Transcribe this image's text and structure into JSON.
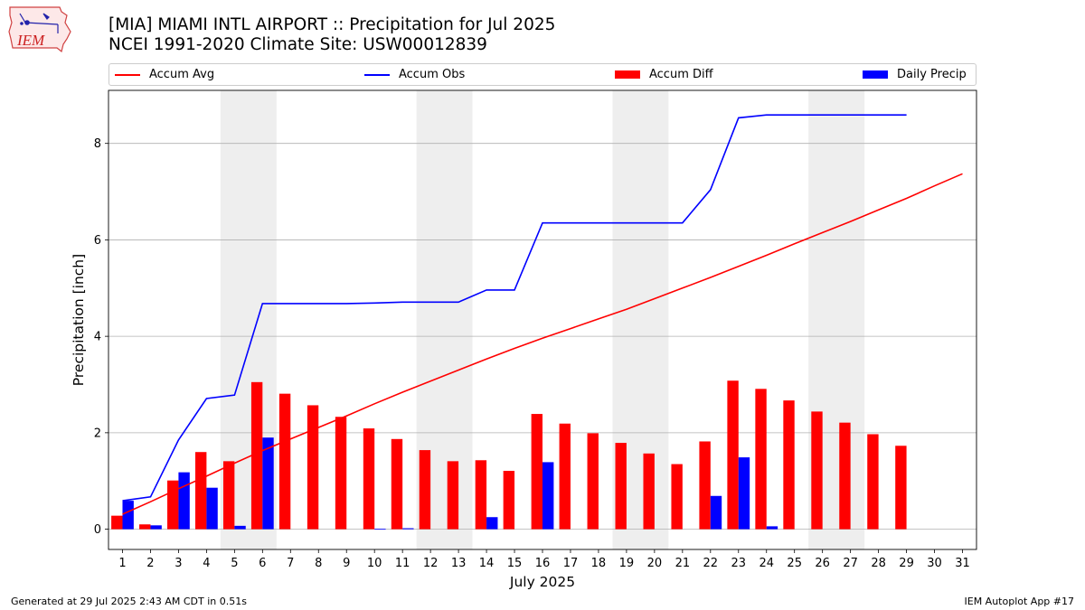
{
  "logo_text": "IEM",
  "footer": {
    "generated": "Generated at 29 Jul 2025 2:43 AM CDT in 0.51s",
    "app": "IEM Autoplot App #17"
  },
  "colors": {
    "avg": "#ff0000",
    "obs": "#0000ff",
    "diff": "#ff0000",
    "daily": "#0000ff",
    "weekend_band": "#eeeeee"
  },
  "chart_data": {
    "type": "bar",
    "title": "[MIA] MIAMI INTL AIRPORT :: Precipitation for Jul 2025",
    "subtitle": "NCEI 1991-2020 Climate Site: USW00012839",
    "xlabel": "July 2025",
    "ylabel": "Precipitation [inch]",
    "xlim": [
      0.5,
      31.5
    ],
    "ylim": [
      -0.42,
      9.1
    ],
    "yticks": [
      0,
      2,
      4,
      6,
      8
    ],
    "grid": "y",
    "legend": "top, spanning width",
    "categories": [
      "1",
      "2",
      "3",
      "4",
      "5",
      "6",
      "7",
      "8",
      "9",
      "10",
      "11",
      "12",
      "13",
      "14",
      "15",
      "16",
      "17",
      "18",
      "19",
      "20",
      "21",
      "22",
      "23",
      "24",
      "25",
      "26",
      "27",
      "28",
      "29",
      "30",
      "31"
    ],
    "weekend_bands": [
      [
        4.5,
        6.5
      ],
      [
        11.5,
        13.5
      ],
      [
        18.5,
        20.5
      ],
      [
        25.5,
        27.5
      ]
    ],
    "series": [
      {
        "name": "Accum Avg",
        "kind": "line",
        "x": [
          1,
          2,
          3,
          4,
          5,
          6,
          7,
          8,
          9,
          10,
          11,
          12,
          13,
          14,
          15,
          16,
          17,
          18,
          19,
          20,
          21,
          22,
          23,
          24,
          25,
          26,
          27,
          28,
          29,
          30,
          31
        ],
        "values": [
          0.31,
          0.57,
          0.84,
          1.1,
          1.37,
          1.63,
          1.87,
          2.11,
          2.35,
          2.6,
          2.84,
          3.07,
          3.3,
          3.53,
          3.75,
          3.96,
          4.16,
          4.36,
          4.56,
          4.78,
          5.0,
          5.22,
          5.45,
          5.68,
          5.92,
          6.15,
          6.38,
          6.62,
          6.86,
          7.12,
          7.37
        ]
      },
      {
        "name": "Accum Obs",
        "kind": "line",
        "x": [
          1,
          2,
          3,
          4,
          5,
          6,
          7,
          8,
          9,
          10,
          11,
          12,
          13,
          14,
          15,
          16,
          17,
          18,
          19,
          20,
          21,
          22,
          23,
          24,
          25,
          26,
          27,
          28,
          29
        ],
        "values": [
          0.59,
          0.67,
          1.85,
          2.71,
          2.78,
          4.68,
          4.68,
          4.68,
          4.68,
          4.69,
          4.71,
          4.71,
          4.71,
          4.96,
          4.96,
          6.35,
          6.35,
          6.35,
          6.35,
          6.35,
          6.35,
          7.04,
          8.53,
          8.59,
          8.59,
          8.59,
          8.59,
          8.59,
          8.59
        ]
      },
      {
        "name": "Accum Diff",
        "kind": "bar",
        "offset": -0.2,
        "x": [
          1,
          2,
          3,
          4,
          5,
          6,
          7,
          8,
          9,
          10,
          11,
          12,
          13,
          14,
          15,
          16,
          17,
          18,
          19,
          20,
          21,
          22,
          23,
          24,
          25,
          26,
          27,
          28,
          29
        ],
        "values": [
          0.28,
          0.1,
          1.01,
          1.6,
          1.41,
          3.05,
          2.81,
          2.57,
          2.33,
          2.09,
          1.87,
          1.64,
          1.41,
          1.43,
          1.21,
          2.39,
          2.19,
          1.99,
          1.79,
          1.57,
          1.35,
          1.82,
          3.08,
          2.91,
          2.67,
          2.44,
          2.21,
          1.97,
          1.73
        ]
      },
      {
        "name": "Daily Precip",
        "kind": "bar",
        "offset": 0.2,
        "x": [
          1,
          2,
          3,
          4,
          5,
          6,
          7,
          8,
          9,
          10,
          11,
          12,
          13,
          14,
          15,
          16,
          17,
          18,
          19,
          20,
          21,
          22,
          23,
          24,
          25,
          26,
          27,
          28,
          29
        ],
        "values": [
          0.59,
          0.08,
          1.18,
          0.86,
          0.07,
          1.9,
          0,
          0,
          0,
          0.01,
          0.02,
          0,
          0,
          0.25,
          0,
          1.39,
          0,
          0,
          0,
          0,
          0,
          0.69,
          1.49,
          0.06,
          0,
          0,
          0,
          0,
          0
        ]
      }
    ]
  }
}
